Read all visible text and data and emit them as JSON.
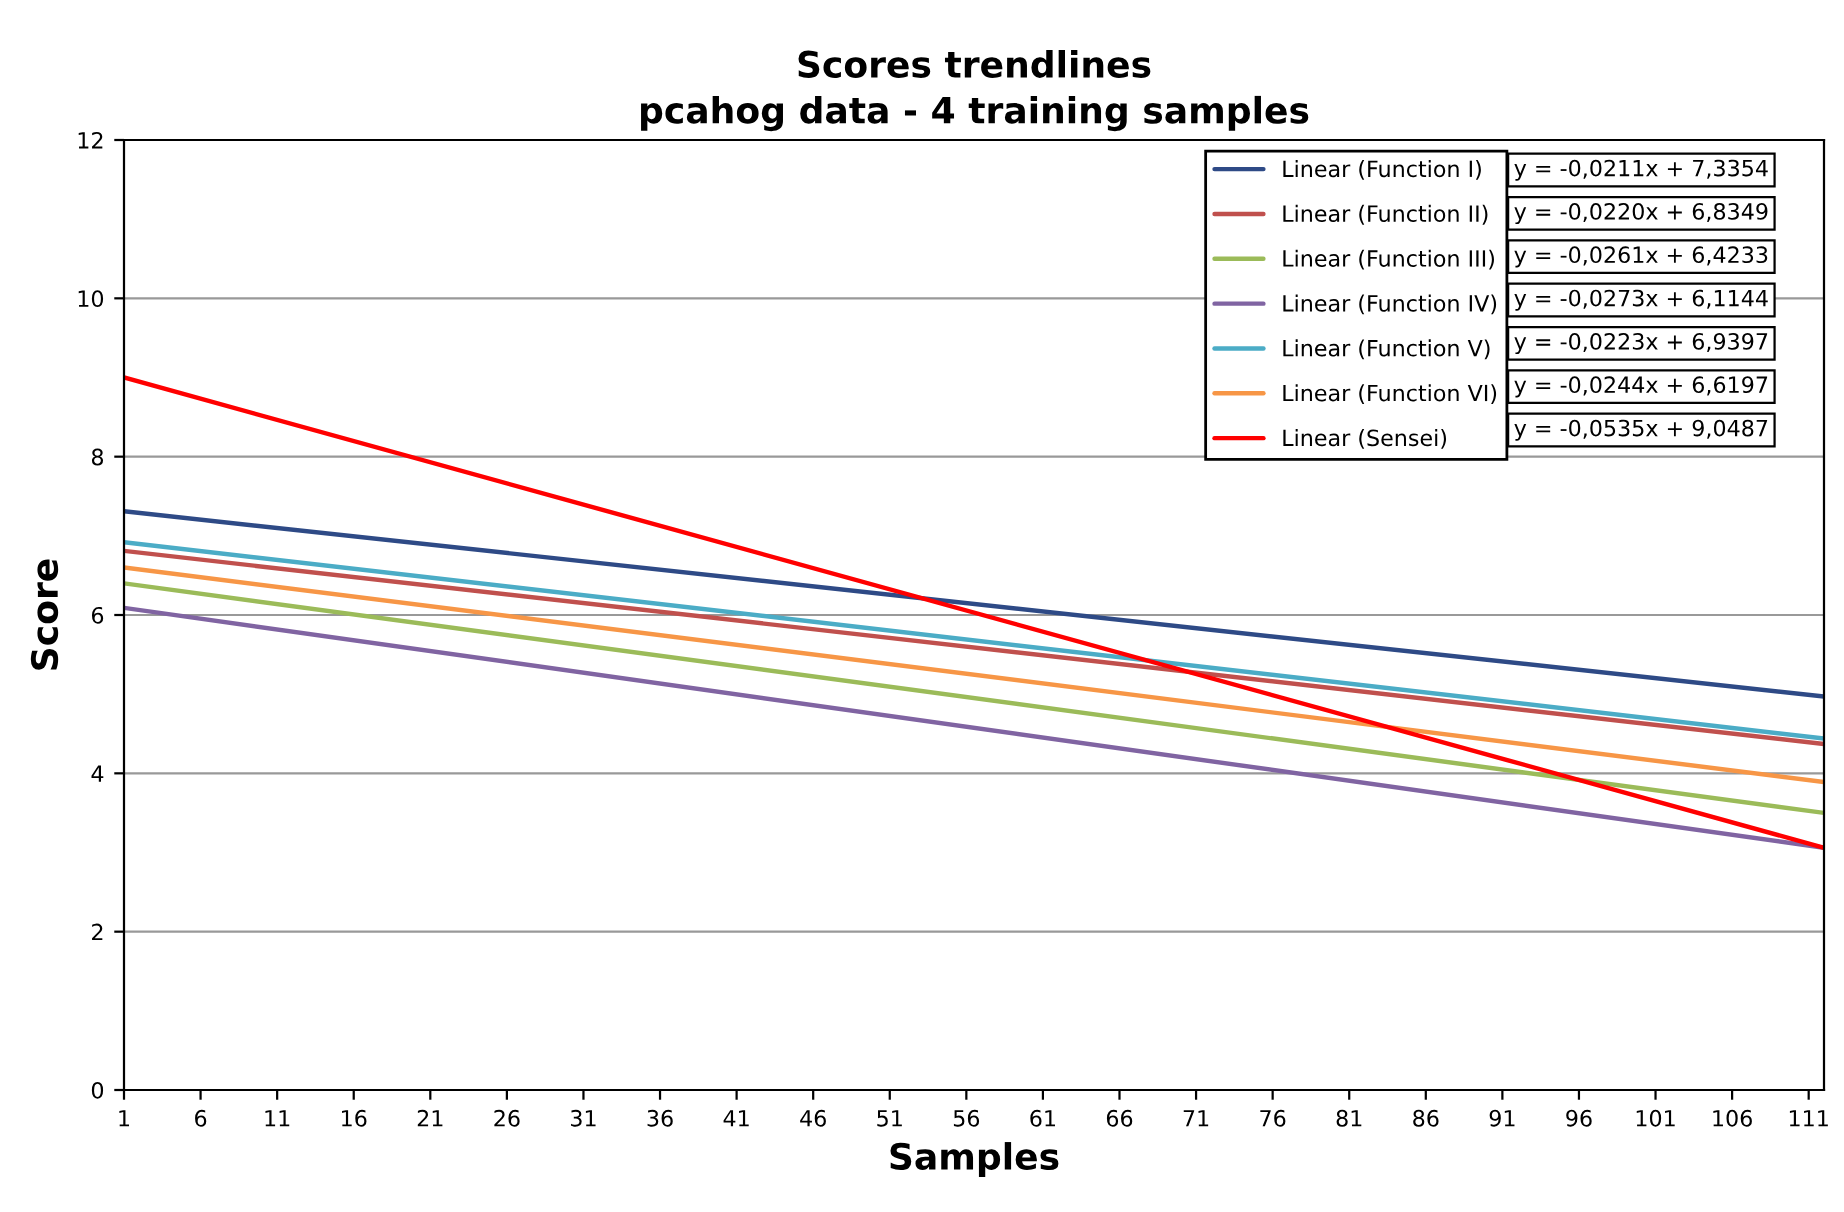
{
  "chart_data": {
    "type": "line",
    "title": "Scores trendlines\npcahog data - 4 training samples",
    "xlabel": "Samples",
    "ylabel": "Score",
    "x": [
      1,
      112
    ],
    "xlim": [
      1,
      112
    ],
    "xticks": [
      1,
      6,
      11,
      16,
      21,
      26,
      31,
      36,
      41,
      46,
      51,
      56,
      61,
      66,
      71,
      76,
      81,
      86,
      91,
      96,
      101,
      106,
      111
    ],
    "ylim": [
      0,
      12
    ],
    "yticks": [
      0,
      2,
      4,
      6,
      8,
      10,
      12
    ],
    "grid": "y",
    "legend": "top right",
    "marker": "none",
    "line_style": "solid",
    "series": [
      {
        "name": "Linear (Function I)",
        "color": "#2e4a86",
        "values": [
          7.31,
          4.97
        ]
      },
      {
        "name": "Linear (Function II)",
        "color": "#c0504d",
        "values": [
          6.81,
          4.37
        ]
      },
      {
        "name": "Linear (Function III)",
        "color": "#9bbb59",
        "values": [
          6.4,
          3.5
        ]
      },
      {
        "name": "Linear (Function IV)",
        "color": "#8064a2",
        "values": [
          6.09,
          3.06
        ]
      },
      {
        "name": "Linear (Function V)",
        "color": "#4bacc6",
        "values": [
          6.92,
          4.44
        ]
      },
      {
        "name": "Linear (Function VI)",
        "color": "#f79646",
        "values": [
          6.6,
          3.89
        ]
      },
      {
        "name": "Linear (Sensei)",
        "color": "#ff0000",
        "values": [
          9.0,
          3.06
        ]
      }
    ],
    "annotations": [
      "y = -0,0211x + 7,3354",
      "y = -0,0220x + 6,8349",
      "y = -0,0261x + 6,4233",
      "y = -0,0273x + 6,1144",
      "y = -0,0223x + 6,9397",
      "y = -0,0244x + 6,6197",
      "y = -0,0535x + 9,0487"
    ]
  }
}
